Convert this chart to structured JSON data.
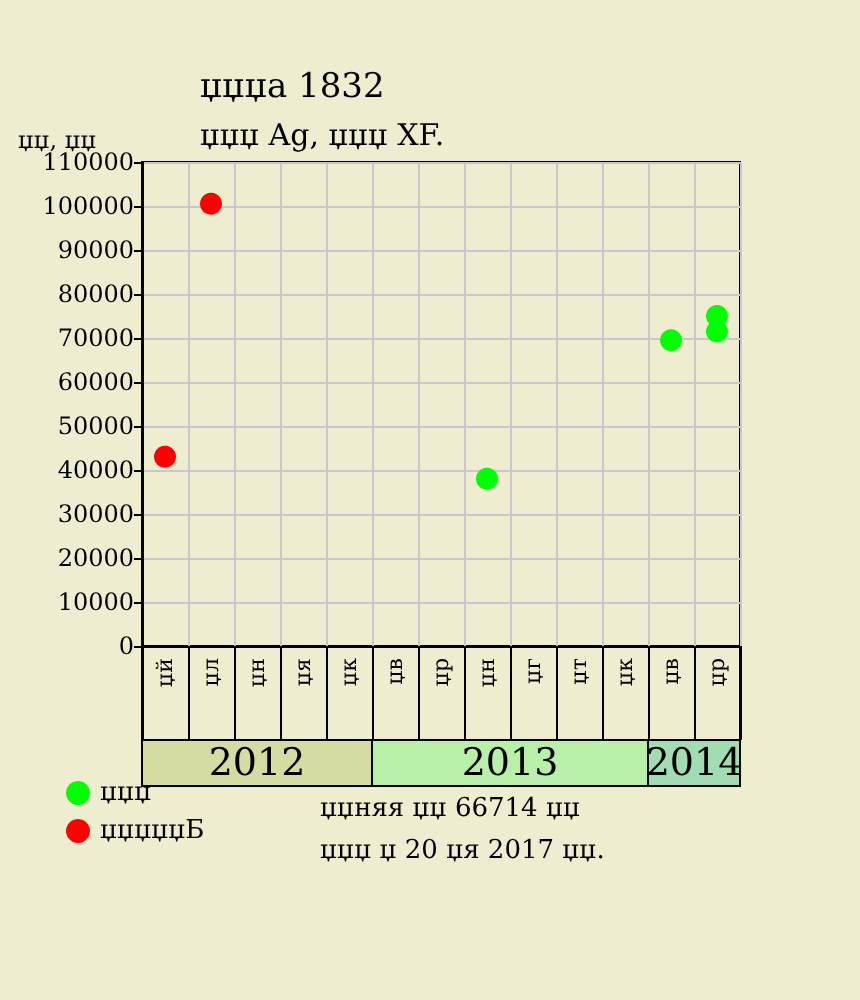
{
  "chart_data": {
    "type": "scatter",
    "title": "џџџа 1832",
    "subtitle": "џџџ Ag, џџџ XF.",
    "ylabel": "џџ, џџ",
    "categories": [
      "џй",
      "џл",
      "џн",
      "џя",
      "џк",
      "џв",
      "џр",
      "џн",
      "џг",
      "џт",
      "џк",
      "џв",
      "џр"
    ],
    "ylim": [
      0,
      110000
    ],
    "yticks": [
      0,
      10000,
      20000,
      30000,
      40000,
      50000,
      60000,
      70000,
      80000,
      90000,
      100000,
      110000
    ],
    "series": [
      {
        "name": "џџџ",
        "color": "#00ff00",
        "values": [
          null,
          null,
          null,
          null,
          null,
          null,
          null,
          38000,
          null,
          null,
          null,
          69500,
          71500
        ]
      },
      {
        "color": "#00ff00",
        "values": [
          null,
          null,
          null,
          null,
          null,
          null,
          null,
          null,
          null,
          null,
          null,
          null,
          75000
        ]
      },
      {
        "name": "џџџџџБ",
        "color": "#ff0000",
        "values": [
          43000,
          100500,
          null,
          null,
          null,
          null,
          null,
          null,
          null,
          null,
          null,
          null,
          null
        ]
      }
    ],
    "annotations": [
      "2012",
      "2013",
      "2014",
      "џџняя џџ 66714 џџ",
      "џџџ џ 20 џя 2017 џџ."
    ],
    "grid": true,
    "legend": "bottom left",
    "marker": "circle"
  }
}
